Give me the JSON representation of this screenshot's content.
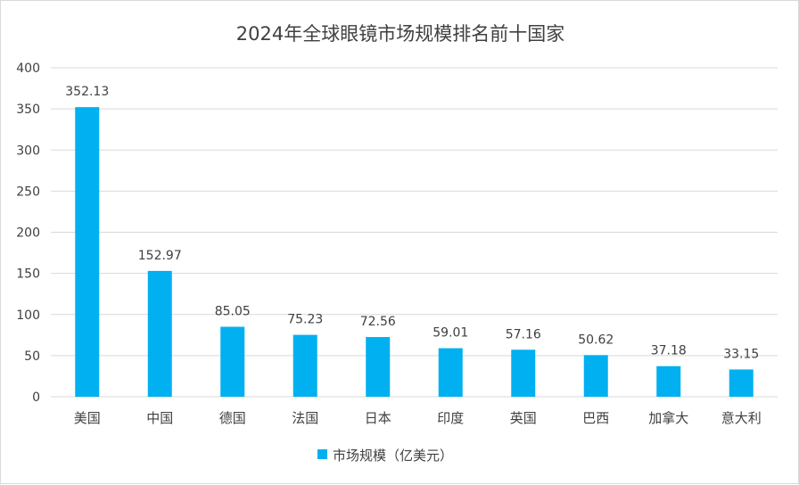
{
  "chart_data": {
    "type": "bar",
    "title": "2024年全球眼镜市场规模排名前十国家",
    "xlabel": "",
    "ylabel": "",
    "categories": [
      "美国",
      "中国",
      "德国",
      "法国",
      "日本",
      "印度",
      "英国",
      "巴西",
      "加拿大",
      "意大利"
    ],
    "series": [
      {
        "name": "市场规模（亿美元）",
        "values": [
          352.13,
          152.97,
          85.05,
          75.23,
          72.56,
          59.01,
          57.16,
          50.62,
          37.18,
          33.15
        ],
        "color": "#00b0f0"
      }
    ],
    "data_labels": [
      "352.13",
      "152.97",
      "85.05",
      "75.23",
      "72.56",
      "59.01",
      "57.16",
      "50.62",
      "37.18",
      "33.15"
    ],
    "ylim": [
      0,
      400
    ],
    "yticks": [
      "0",
      "50",
      "100",
      "150",
      "200",
      "250",
      "300",
      "350",
      "400"
    ],
    "grid": true,
    "legend_position": "bottom",
    "colors": {
      "bar": "#00b0f0",
      "grid": "#d9d9d9",
      "text": "#404040"
    }
  }
}
